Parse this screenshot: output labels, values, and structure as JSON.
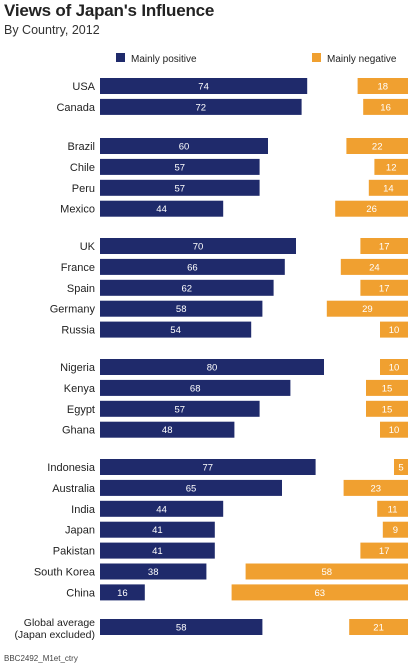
{
  "chart_data": {
    "type": "bar",
    "title": "Views of Japan's Influence",
    "subtitle": "By Country, 2012",
    "xlim": [
      0,
      100
    ],
    "legend_position": "top",
    "series": [
      {
        "name": "Mainly positive",
        "color": "#1f2a6b"
      },
      {
        "name": "Mainly negative",
        "color": "#f0a030"
      }
    ],
    "groups": [
      {
        "rows": [
          {
            "label": "USA",
            "positive": 74,
            "negative": 18
          },
          {
            "label": "Canada",
            "positive": 72,
            "negative": 16
          }
        ]
      },
      {
        "rows": [
          {
            "label": "Brazil",
            "positive": 60,
            "negative": 22
          },
          {
            "label": "Chile",
            "positive": 57,
            "negative": 12
          },
          {
            "label": "Peru",
            "positive": 57,
            "negative": 14
          },
          {
            "label": "Mexico",
            "positive": 44,
            "negative": 26
          }
        ]
      },
      {
        "rows": [
          {
            "label": "UK",
            "positive": 70,
            "negative": 17
          },
          {
            "label": "France",
            "positive": 66,
            "negative": 24
          },
          {
            "label": "Spain",
            "positive": 62,
            "negative": 17
          },
          {
            "label": "Germany",
            "positive": 58,
            "negative": 29
          },
          {
            "label": "Russia",
            "positive": 54,
            "negative": 10
          }
        ]
      },
      {
        "rows": [
          {
            "label": "Nigeria",
            "positive": 80,
            "negative": 10
          },
          {
            "label": "Kenya",
            "positive": 68,
            "negative": 15
          },
          {
            "label": "Egypt",
            "positive": 57,
            "negative": 15
          },
          {
            "label": "Ghana",
            "positive": 48,
            "negative": 10
          }
        ]
      },
      {
        "rows": [
          {
            "label": "Indonesia",
            "positive": 77,
            "negative": 5
          },
          {
            "label": "Australia",
            "positive": 65,
            "negative": 23
          },
          {
            "label": "India",
            "positive": 44,
            "negative": 11
          },
          {
            "label": "Japan",
            "positive": 41,
            "negative": 9
          },
          {
            "label": "Pakistan",
            "positive": 41,
            "negative": 17
          },
          {
            "label": "South Korea",
            "positive": 38,
            "negative": 58
          },
          {
            "label": "China",
            "positive": 16,
            "negative": 63
          }
        ]
      },
      {
        "rows": [
          {
            "label": [
              "Global average",
              "(Japan excluded)"
            ],
            "positive": 58,
            "negative": 21
          }
        ]
      }
    ]
  },
  "footer": "BBC2492_M1et_ctry"
}
